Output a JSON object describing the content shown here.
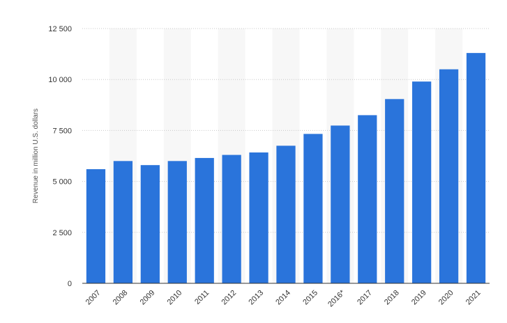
{
  "chart_data": {
    "type": "bar",
    "title": "",
    "xlabel": "",
    "ylabel": "Revenue in million U.S. dollars",
    "categories": [
      "2007",
      "2008",
      "2009",
      "2010",
      "2011",
      "2012",
      "2013",
      "2014",
      "2015",
      "2016*",
      "2017",
      "2018",
      "2019",
      "2020",
      "2021"
    ],
    "values": [
      5600,
      6000,
      5800,
      6000,
      6150,
      6300,
      6420,
      6750,
      7330,
      7740,
      8250,
      9040,
      9900,
      10500,
      11300
    ],
    "ylim": [
      0,
      12500
    ],
    "yticks": [
      0,
      2500,
      5000,
      7500,
      10000,
      12500
    ],
    "ytick_labels": [
      "0",
      "2 500",
      "5 000",
      "7 500",
      "10 000",
      "12 500"
    ],
    "grid": true,
    "bar_color": "#2a74db",
    "band_color": "#f7f7f7",
    "grid_color": "#c8c8c8",
    "axis_color": "#333333"
  }
}
